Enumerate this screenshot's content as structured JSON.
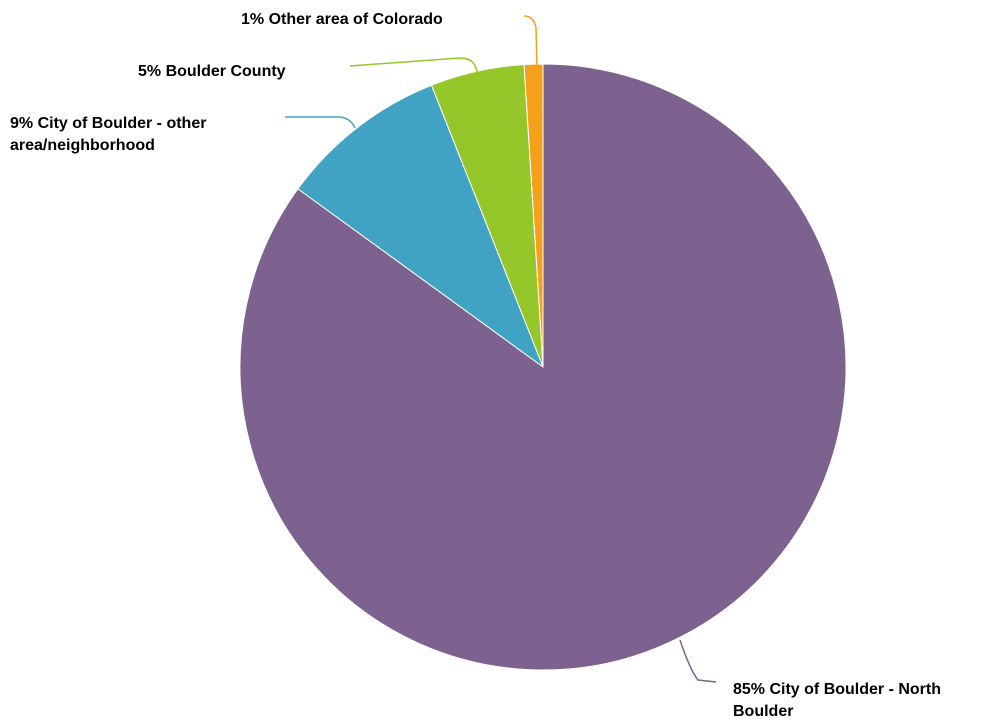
{
  "chart_data": {
    "type": "pie",
    "title": "",
    "slices": [
      {
        "label": "City of Boulder - North Boulder",
        "value": 85,
        "pct_text": "85%",
        "color": "#7d618e",
        "label_lines": [
          "85% City of Boulder - North",
          "Boulder"
        ]
      },
      {
        "label": "City of Boulder - other area/neighborhood",
        "value": 9,
        "pct_text": "9%",
        "color": "#41a3c3",
        "label_lines": [
          "9% City of Boulder - other",
          "area/neighborhood"
        ]
      },
      {
        "label": "Boulder County",
        "value": 5,
        "pct_text": "5%",
        "color": "#95c72b",
        "label_lines": [
          "5% Boulder County"
        ]
      },
      {
        "label": "Other area of Colorado",
        "value": 1,
        "pct_text": "1%",
        "color": "#f5a01b",
        "label_lines": [
          "1% Other area of Colorado"
        ]
      }
    ]
  }
}
